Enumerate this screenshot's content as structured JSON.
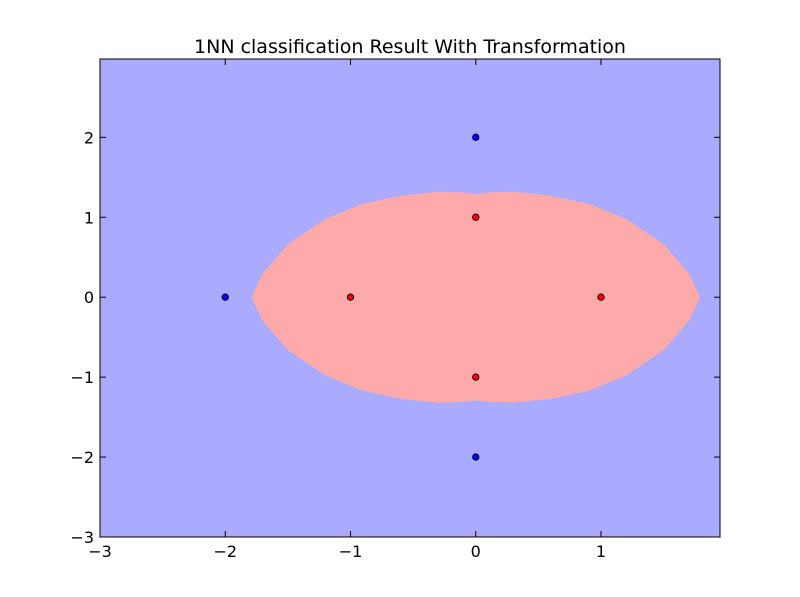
{
  "chart_data": {
    "type": "scatter",
    "title": "1NN classification Result With Transformation",
    "xlabel": "",
    "ylabel": "",
    "xlim": [
      -3,
      1.95
    ],
    "ylim": [
      -3,
      2.98
    ],
    "x_ticks": [
      -3,
      -2,
      -1,
      0,
      1
    ],
    "y_ticks": [
      -3,
      -2,
      -1,
      0,
      1,
      2
    ],
    "x_tick_labels": [
      "−3",
      "−2",
      "−1",
      "0",
      "1"
    ],
    "y_tick_labels": [
      "−3",
      "−2",
      "−1",
      "0",
      "1",
      "2"
    ],
    "grid": false,
    "background_region": {
      "class": "blue",
      "color": "#aaaaff"
    },
    "decision_region": {
      "class": "red",
      "color": "#ffaaaa",
      "description_points_x": [
        -1.79,
        -1.7,
        -1.5,
        -1.2,
        -0.9,
        -0.6,
        -0.3,
        -0.1,
        0,
        0.1,
        0.3,
        0.6,
        0.9,
        1.2,
        1.5,
        1.7,
        1.79
      ],
      "upper_y": [
        0,
        0.3,
        0.66,
        0.98,
        1.17,
        1.27,
        1.32,
        1.31,
        1.29,
        1.31,
        1.32,
        1.27,
        1.17,
        0.98,
        0.66,
        0.3,
        0
      ]
    },
    "series": [
      {
        "color": "#0000ff",
        "points": [
          {
            "x": 0,
            "y": 2
          },
          {
            "x": -2,
            "y": 0
          },
          {
            "x": 0,
            "y": -2
          }
        ]
      },
      {
        "color": "#ff0000",
        "points": [
          {
            "x": 0,
            "y": 1
          },
          {
            "x": -1,
            "y": 0
          },
          {
            "x": 1,
            "y": 0
          },
          {
            "x": 0,
            "y": -1
          }
        ]
      }
    ]
  }
}
